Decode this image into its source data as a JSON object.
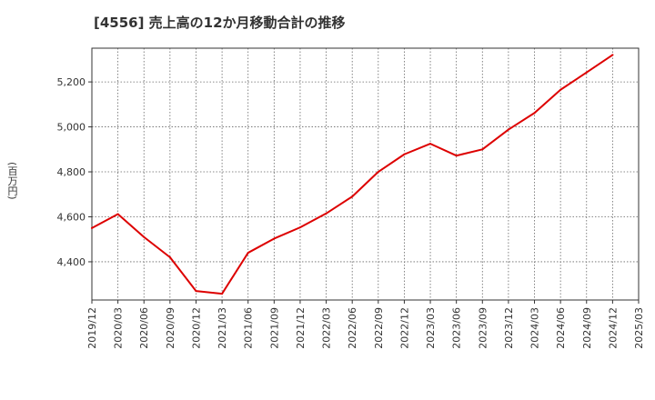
{
  "chart_data": {
    "type": "line",
    "title": "[4556]  売上高の12か月移動合計の推移",
    "ylabel": "(百万円)",
    "xlabel": "",
    "ylim": [
      4230,
      5350
    ],
    "yticks": [
      4400,
      4600,
      4800,
      5000,
      5200
    ],
    "ytick_labels": [
      "4,400",
      "4,600",
      "4,800",
      "5,000",
      "5,200"
    ],
    "categories": [
      "2019/12",
      "2020/03",
      "2020/06",
      "2020/09",
      "2020/12",
      "2021/03",
      "2021/06",
      "2021/09",
      "2021/12",
      "2022/03",
      "2022/06",
      "2022/09",
      "2022/12",
      "2023/03",
      "2023/06",
      "2023/09",
      "2023/12",
      "2024/03",
      "2024/06",
      "2024/09",
      "2024/12",
      "2025/03"
    ],
    "grid": true,
    "series": [
      {
        "name": "売上高の12か月移動合計",
        "color": "#dd0000",
        "values": [
          4550,
          4612,
          4510,
          4420,
          4270,
          4258,
          4440,
          4503,
          4553,
          4615,
          4690,
          4800,
          4878,
          4925,
          4872,
          4900,
          4988,
          5062,
          5165,
          5242,
          5320,
          null
        ]
      }
    ]
  }
}
